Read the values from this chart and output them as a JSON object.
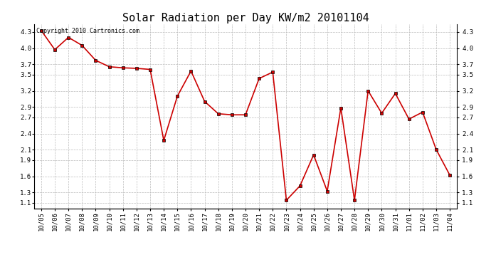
{
  "title": "Solar Radiation per Day KW/m2 20101104",
  "copyright_text": "Copyright 2010 Cartronics.com",
  "dates": [
    "10/05",
    "10/06",
    "10/07",
    "10/08",
    "10/09",
    "10/10",
    "10/11",
    "10/12",
    "10/13",
    "10/14",
    "10/15",
    "10/16",
    "10/17",
    "10/18",
    "10/19",
    "10/20",
    "10/21",
    "10/22",
    "10/23",
    "10/24",
    "10/25",
    "10/26",
    "10/27",
    "10/28",
    "10/29",
    "10/30",
    "10/31",
    "11/01",
    "11/02",
    "11/03",
    "11/04"
  ],
  "values": [
    4.33,
    3.97,
    4.2,
    4.05,
    3.77,
    3.65,
    3.63,
    3.62,
    3.6,
    2.27,
    3.1,
    3.57,
    3.0,
    2.77,
    2.75,
    2.75,
    3.43,
    3.55,
    1.15,
    1.42,
    2.0,
    1.32,
    2.88,
    1.15,
    3.2,
    2.78,
    3.15,
    2.67,
    2.8,
    2.1,
    1.62
  ],
  "line_color": "#cc0000",
  "marker_size": 3,
  "bg_color": "#ffffff",
  "grid_color": "#bbbbbb",
  "ylim": [
    1.0,
    4.45
  ],
  "yticks": [
    1.1,
    1.3,
    1.6,
    1.9,
    2.1,
    2.4,
    2.7,
    2.9,
    3.2,
    3.5,
    3.7,
    4.0,
    4.3
  ],
  "title_fontsize": 11,
  "copyright_fontsize": 6,
  "tick_fontsize": 6.5
}
